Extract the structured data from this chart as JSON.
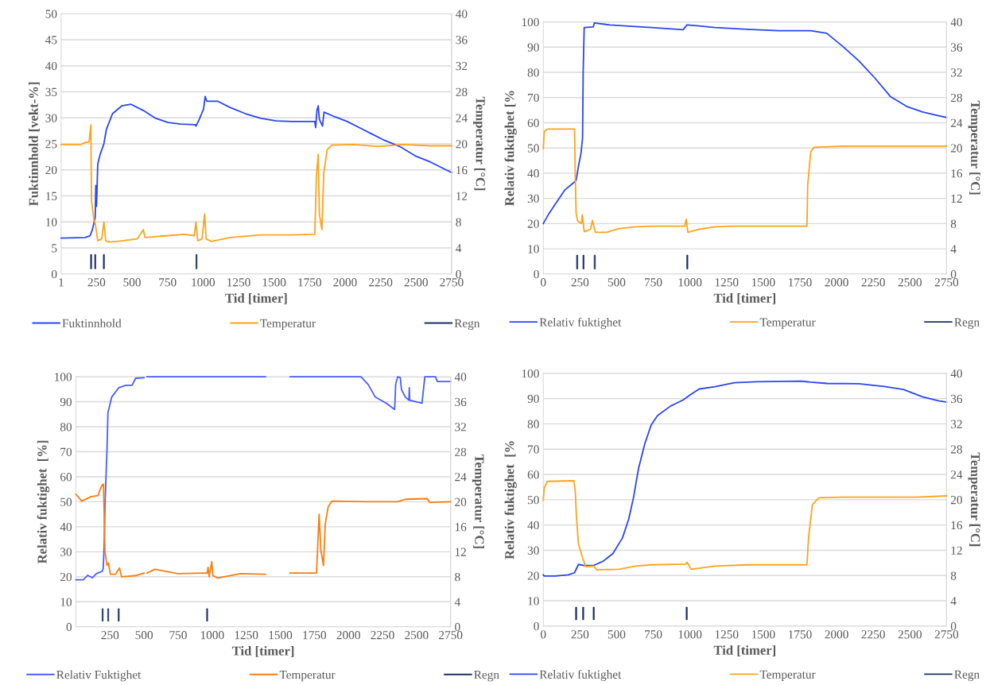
{
  "chart_data": [
    {
      "type": "line",
      "xlabel": "Tid [timer]",
      "ylabel": "Fuktinnhold [vekt-%]",
      "y2label": "Temperatur [°C]",
      "xlim": [
        1,
        2750
      ],
      "xticks": [
        1,
        250,
        500,
        750,
        1000,
        1250,
        1500,
        1750,
        2000,
        2250,
        2500,
        2750
      ],
      "ylim": [
        0,
        50
      ],
      "yticks": [
        0,
        5,
        10,
        15,
        20,
        25,
        30,
        35,
        40,
        45,
        50
      ],
      "y2lim": [
        0,
        40
      ],
      "y2ticks": [
        0,
        4,
        8,
        12,
        16,
        20,
        24,
        28,
        32,
        36,
        40
      ],
      "grid": "y",
      "legend": "bottom",
      "series": [
        {
          "name": "Fuktinnhold",
          "color": "#2a45f5",
          "x": [
            1,
            169,
            204,
            221,
            241,
            245,
            250,
            259,
            276,
            302,
            320,
            363,
            428,
            493,
            580,
            667,
            754,
            841,
            946,
            950,
            972,
            1004,
            1015,
            1026,
            1102,
            1189,
            1298,
            1407,
            1515,
            1624,
            1787,
            1793,
            1802,
            1811,
            1819,
            1841,
            1852,
            1928,
            2015,
            2102,
            2189,
            2276,
            2385,
            2493,
            2602,
            2711,
            2750
          ],
          "values": [
            6.9,
            7.0,
            7.3,
            8.5,
            10.9,
            17,
            13,
            21.2,
            23,
            25,
            27.8,
            30.8,
            32.3,
            32.6,
            31.4,
            29.9,
            29.1,
            28.8,
            28.7,
            28.4,
            29.6,
            31.7,
            34.1,
            33.2,
            33.2,
            32.0,
            30.8,
            29.9,
            29.4,
            29.3,
            29.3,
            28.1,
            31.4,
            32.3,
            29.7,
            28.4,
            31.1,
            30.2,
            29.3,
            28.1,
            26.9,
            25.7,
            24.5,
            22.7,
            21.5,
            20.0,
            19.5
          ]
        },
        {
          "name": "Temperatur",
          "color": "#ffa31a",
          "axis": "y2",
          "x": [
            1,
            140,
            169,
            198,
            210,
            215,
            232,
            241,
            259,
            287,
            302,
            315,
            341,
            428,
            537,
            580,
            591,
            754,
            863,
            939,
            950,
            963,
            993,
            1011,
            1022,
            1059,
            1189,
            1407,
            1624,
            1787,
            1798,
            1811,
            1819,
            1837,
            1850,
            1874,
            1907,
            2059,
            2233,
            2407,
            2602,
            2750
          ],
          "values": [
            19.9,
            19.9,
            20.2,
            20.3,
            22.9,
            11.2,
            8.3,
            7.8,
            5.1,
            5.4,
            8.0,
            5.1,
            4.9,
            5.1,
            5.4,
            6.8,
            5.6,
            5.9,
            6.1,
            5.9,
            8.0,
            5.1,
            5.4,
            9.2,
            5.4,
            5.0,
            5.6,
            6.0,
            6.0,
            6.1,
            15.0,
            18.4,
            9.2,
            6.8,
            15.5,
            19.1,
            19.8,
            19.9,
            19.6,
            19.9,
            19.7,
            19.7
          ]
        },
        {
          "name": "Regn",
          "type": "bar",
          "color": "#1c2f5e",
          "axis": "y2",
          "x": [
            212,
            241,
            302,
            954
          ],
          "base": [
            0.8,
            0.8,
            0.8,
            0.8
          ],
          "values": [
            2.2,
            2.2,
            2.2,
            2.2
          ]
        }
      ]
    },
    {
      "type": "line",
      "xlabel": "Tid [timer]",
      "ylabel": "Relativ fuktighet [%",
      "y2label": "Temperatur [°C]",
      "xlim": [
        0,
        2750
      ],
      "xticks": [
        0,
        250,
        500,
        750,
        1000,
        1250,
        1500,
        1750,
        2000,
        2250,
        2500,
        2750
      ],
      "ylim": [
        0,
        100
      ],
      "yticks": [
        0,
        10,
        20,
        30,
        40,
        50,
        60,
        70,
        80,
        90,
        100
      ],
      "y2lim": [
        0,
        40
      ],
      "y2ticks": [
        0,
        4,
        8,
        12,
        16,
        20,
        24,
        28,
        32,
        36,
        40
      ],
      "grid": "y",
      "legend": "bottom",
      "series": [
        {
          "name": "Relativ fuktighet",
          "color": "#2a45f5",
          "x": [
            0,
            39,
            83,
            148,
            213,
            224,
            240,
            257,
            268,
            272,
            279,
            340,
            349,
            453,
            736,
            954,
            980,
            1063,
            1171,
            1389,
            1607,
            1824,
            1933,
            2042,
            2151,
            2260,
            2369,
            2477,
            2586,
            2695,
            2750
          ],
          "values": [
            20,
            24,
            27.8,
            33.4,
            36.5,
            37.1,
            42.8,
            47.8,
            54,
            80.3,
            97.8,
            98,
            99.6,
            98.8,
            97.8,
            96.9,
            98.8,
            98.4,
            97.8,
            97.1,
            96.5,
            96.5,
            95.5,
            90.3,
            84.6,
            77.8,
            70.3,
            66.5,
            64.3,
            62.8,
            62.1
          ]
        },
        {
          "name": "Temperatur",
          "color": "#ffa31a",
          "axis": "y2",
          "x": [
            0,
            7,
            28,
            213,
            218,
            224,
            235,
            261,
            266,
            279,
            322,
            335,
            355,
            431,
            518,
            627,
            736,
            965,
            975,
            986,
            1063,
            1171,
            1280,
            1607,
            1798,
            1803,
            1824,
            1846,
            2042,
            2750
          ],
          "values": [
            19.9,
            22.6,
            23.0,
            23.0,
            15.6,
            9.6,
            8.4,
            8.0,
            9.4,
            6.7,
            7.1,
            8.5,
            6.6,
            6.6,
            7.2,
            7.5,
            7.6,
            7.6,
            8.7,
            6.6,
            7.1,
            7.5,
            7.6,
            7.6,
            7.6,
            14.1,
            19.4,
            20.1,
            20.3,
            20.3
          ]
        },
        {
          "name": "Regn",
          "type": "bar",
          "color": "#1c2f5e",
          "axis": "y2",
          "x": [
            231,
            274,
            351,
            982
          ],
          "base": [
            0.8,
            0.8,
            0.8,
            0.8
          ],
          "values": [
            2.2,
            2.2,
            2.2,
            2.2
          ]
        }
      ]
    },
    {
      "type": "line",
      "xlabel": "Tid [timer]",
      "ylabel": "Relativ fuktighet  [%]",
      "y2label": "Temperatur [°C]",
      "xlim": [
        0,
        2750
      ],
      "xticks": [
        250,
        500,
        750,
        1000,
        1250,
        1500,
        1750,
        2000,
        2250,
        2500,
        2750
      ],
      "ylim": [
        0,
        100
      ],
      "yticks": [
        0,
        10,
        20,
        30,
        40,
        50,
        60,
        70,
        80,
        90,
        100
      ],
      "y2lim": [
        0,
        40
      ],
      "y2ticks": [
        0,
        4,
        8,
        12,
        16,
        20,
        24,
        28,
        32,
        36,
        40
      ],
      "grid": "y",
      "legend": "bottom",
      "series": [
        {
          "name": "Relativ Fuktighet",
          "color": "#4a5cff",
          "x": [
            0,
            54,
            87,
            120,
            152,
            191,
            200,
            207,
            213,
            222,
            228,
            235,
            263,
            314,
            366,
            412,
            438,
            500,
            511,
            522,
            1391,
            1480,
            1572,
            2092,
            2145,
            2197,
            2278,
            2339,
            2347,
            2361,
            2381,
            2389,
            2417,
            2444,
            2447,
            2450,
            2540,
            2561,
            2639,
            2653,
            2750
          ],
          "values": [
            18.8,
            18.8,
            20.6,
            19.6,
            21.3,
            22.1,
            23.1,
            31.9,
            48,
            61.9,
            70.6,
            85.6,
            91.9,
            95.6,
            96.6,
            96.6,
            99.4,
            99.6,
            null,
            100,
            100,
            null,
            100,
            100,
            96.9,
            91.9,
            89.4,
            86.9,
            96.9,
            100,
            99.6,
            95.0,
            91.9,
            90.6,
            95.6,
            90.6,
            89.4,
            100,
            100,
            98.1,
            98.1
          ]
        },
        {
          "name": "Temperatur",
          "color": "#fb7d0f",
          "axis": "y2",
          "x": [
            0,
            43,
            109,
            163,
            178,
            196,
            202,
            207,
            213,
            228,
            239,
            253,
            289,
            320,
            335,
            443,
            500,
            511,
            522,
            580,
            747,
            963,
            970,
            978,
            997,
            1005,
            1039,
            1208,
            1391,
            1480,
            1572,
            1766,
            1785,
            1798,
            1817,
            1830,
            1852,
            1878,
            2145,
            2361,
            2417,
            2578,
            2597,
            2750
          ],
          "values": [
            21.2,
            20.1,
            20.8,
            21,
            22,
            22.8,
            22.8,
            18.2,
            12.2,
            9.8,
            10.2,
            8.4,
            8.4,
            9.4,
            8.0,
            8.2,
            8.6,
            null,
            8.6,
            9.2,
            8.5,
            8.6,
            9.5,
            8.0,
            10.4,
            8.2,
            7.8,
            8.5,
            8.4,
            null,
            8.6,
            8.6,
            18.0,
            12.2,
            9.8,
            16.5,
            19.2,
            20.1,
            20.0,
            20.0,
            20.4,
            20.5,
            19.9,
            20.0
          ]
        },
        {
          "name": "Regn",
          "type": "bar",
          "color": "#1c2f5e",
          "axis": "y2",
          "x": [
            196,
            237,
            314,
            963
          ],
          "base": [
            0.9,
            0.9,
            0.9,
            0.9
          ],
          "values": [
            2.0,
            2.0,
            2.0,
            2.0
          ]
        }
      ]
    },
    {
      "type": "line",
      "xlabel": "Tid [timer]",
      "ylabel": "Relativ fuktighet  [%",
      "y2label": "Temperatur [°C]",
      "xlim": [
        0,
        2750
      ],
      "xticks": [
        0,
        250,
        500,
        750,
        1000,
        1250,
        1500,
        1750,
        2000,
        2250,
        2500,
        2750
      ],
      "ylim": [
        0,
        100
      ],
      "yticks": [
        0,
        10,
        20,
        30,
        40,
        50,
        60,
        70,
        80,
        90,
        100
      ],
      "y2lim": [
        0,
        40
      ],
      "y2ticks": [
        0,
        4,
        8,
        12,
        16,
        20,
        24,
        28,
        32,
        36,
        40
      ],
      "grid": "y",
      "legend": "bottom",
      "series": [
        {
          "name": "Relativ fuktighet",
          "color": "#2a45f5",
          "x": [
            0,
            7,
            83,
            170,
            213,
            240,
            279,
            344,
            409,
            475,
            540,
            583,
            616,
            649,
            692,
            736,
            779,
            867,
            954,
            997,
            1063,
            1171,
            1302,
            1454,
            1759,
            1824,
            1933,
            2151,
            2325,
            2456,
            2586,
            2695,
            2750
          ],
          "values": [
            20.3,
            19.8,
            19.8,
            20.3,
            21.1,
            24.4,
            24.0,
            24.0,
            25.7,
            28.7,
            34.9,
            42.4,
            51.1,
            62.2,
            72.1,
            79.6,
            83.3,
            87.0,
            89.5,
            91.3,
            93.8,
            94.7,
            96.3,
            96.7,
            96.9,
            96.5,
            96.0,
            95.9,
            94.8,
            93.6,
            90.7,
            89.1,
            88.6
          ]
        },
        {
          "name": "Temperatur",
          "color": "#ffa31a",
          "axis": "y2",
          "x": [
            0,
            7,
            28,
            209,
            218,
            226,
            240,
            268,
            290,
            344,
            366,
            518,
            627,
            736,
            971,
            980,
            1008,
            1171,
            1389,
            1798,
            1809,
            1835,
            1879,
            2042,
            2543,
            2750
          ],
          "values": [
            19.9,
            21.9,
            22.9,
            23.0,
            21.4,
            17.4,
            13.0,
            10.8,
            9.4,
            9.5,
            8.9,
            9.0,
            9.5,
            9.7,
            9.8,
            10.1,
            9.0,
            9.5,
            9.7,
            9.7,
            14.0,
            19.2,
            20.3,
            20.4,
            20.4,
            20.6
          ]
        },
        {
          "name": "Regn",
          "type": "bar",
          "color": "#1c2f5e",
          "axis": "y2",
          "x": [
            224,
            272,
            344,
            978
          ],
          "base": [
            1.0,
            1.0,
            1.0,
            1.0
          ],
          "values": [
            2.0,
            2.0,
            2.0,
            2.0
          ]
        }
      ]
    }
  ]
}
